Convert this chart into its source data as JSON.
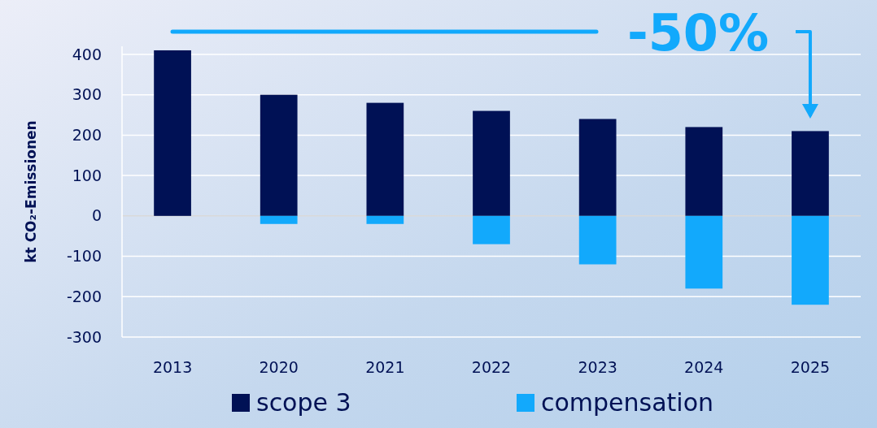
{
  "chart_data": {
    "type": "bar",
    "stacked": true,
    "ylabel": "kt CO₂-Emissionen",
    "categories": [
      "2013",
      "2020",
      "2021",
      "2022",
      "2023",
      "2024",
      "2025"
    ],
    "series": [
      {
        "name": "scope 3",
        "color": "#001155",
        "values": [
          410,
          300,
          280,
          260,
          240,
          220,
          210
        ]
      },
      {
        "name": "compensation",
        "color": "#12a9fc",
        "values": [
          0,
          -20,
          -20,
          -70,
          -120,
          -180,
          -220
        ]
      }
    ],
    "ylim": [
      -300,
      420
    ],
    "yticks": [
      -300,
      -200,
      -100,
      0,
      100,
      200,
      300,
      400
    ],
    "grid": "y",
    "legend": "bottom",
    "annotations": [
      "-50%"
    ]
  }
}
